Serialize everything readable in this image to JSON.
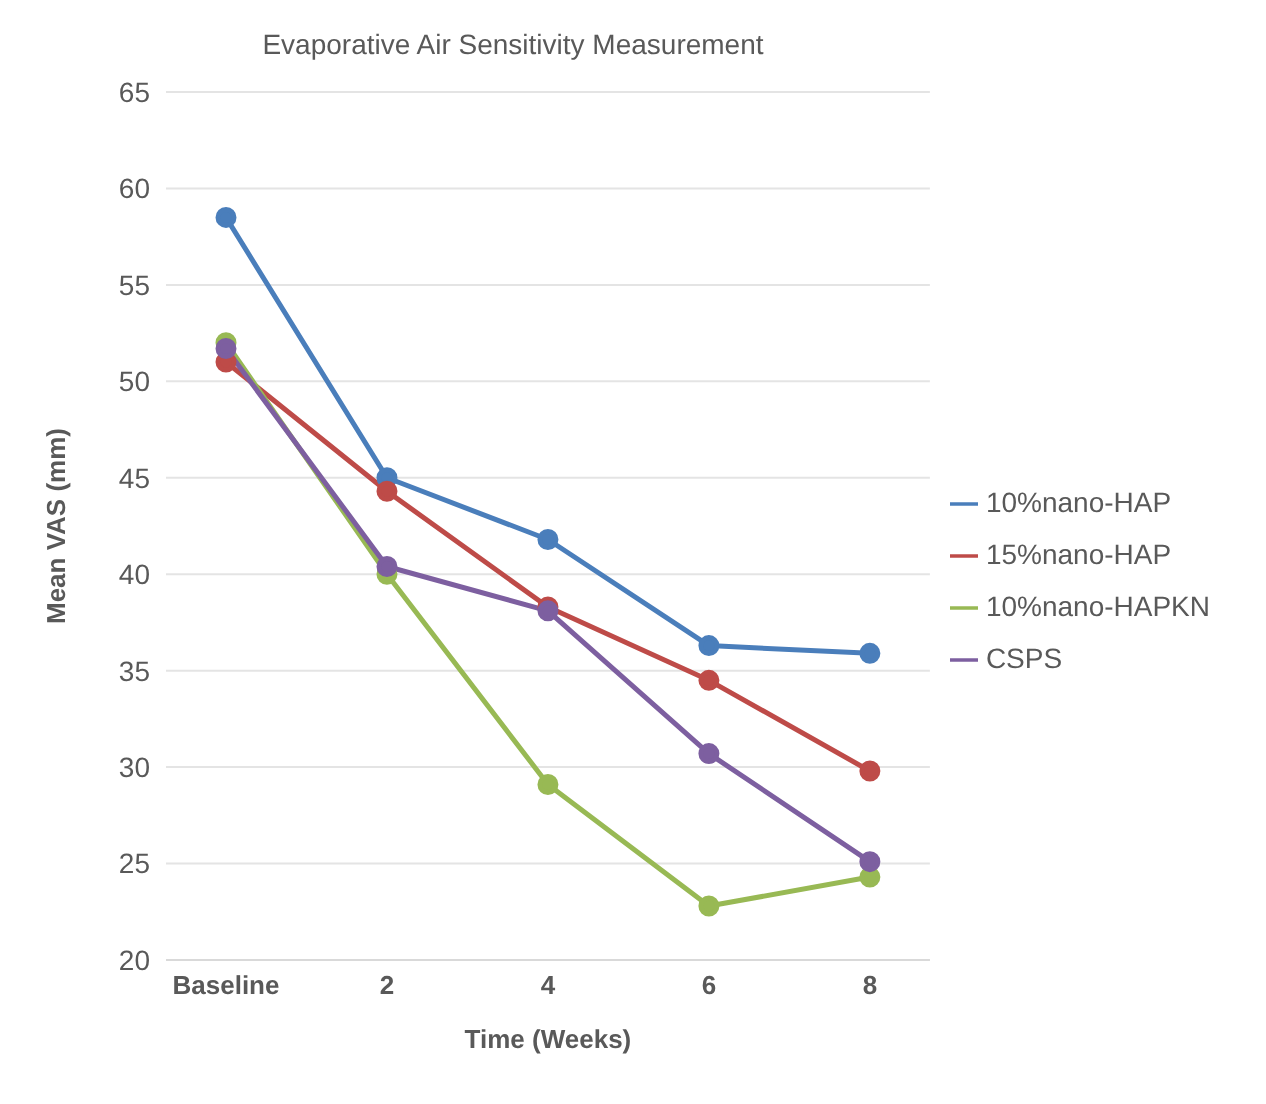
{
  "chart_data": {
    "type": "line",
    "title": "Evaporative Air Sensitivity Measurement",
    "xlabel": "Time (Weeks)",
    "ylabel": "Mean VAS (mm)",
    "categories": [
      "Baseline",
      "2",
      "4",
      "6",
      "8"
    ],
    "series": [
      {
        "name": "10%nano-HAP",
        "color": "#4a7ebb",
        "values": [
          58.5,
          45,
          41.8,
          36.3,
          35.9
        ]
      },
      {
        "name": "15%nano-HAP",
        "color": "#be4b48",
        "values": [
          51,
          44.3,
          38.3,
          34.5,
          29.8
        ]
      },
      {
        "name": "10%nano-HAPKN",
        "color": "#98b954",
        "values": [
          52,
          40,
          29.1,
          22.8,
          24.3
        ]
      },
      {
        "name": "CSPS",
        "color": "#7d5fa0",
        "values": [
          51.7,
          40.4,
          38.1,
          30.7,
          25.1
        ]
      }
    ],
    "ylim": [
      20,
      65
    ],
    "yticks": [
      20,
      25,
      30,
      35,
      40,
      45,
      50,
      55,
      60,
      65
    ],
    "grid": "y",
    "legend": "right",
    "marker": "circle",
    "line_style": "solid"
  }
}
